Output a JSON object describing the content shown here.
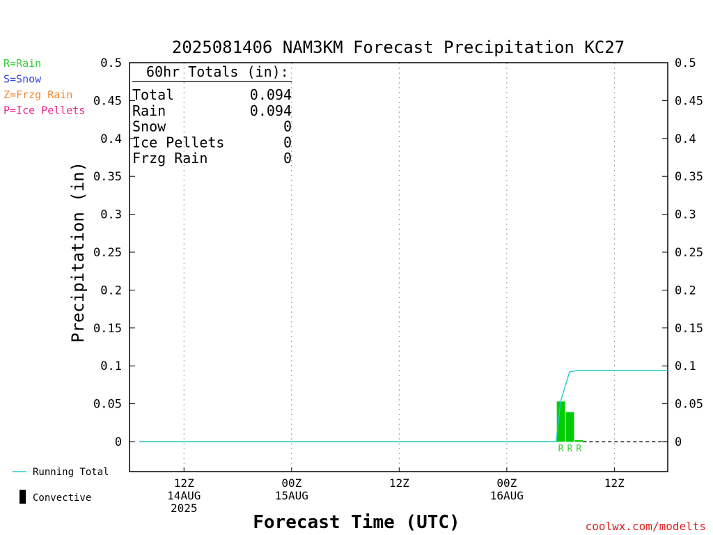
{
  "title": "2025081406 NAM3KM Forecast Precipitation KC27",
  "credit": "coolwx.com/modelts",
  "legend": {
    "ptype_keys": [
      {
        "text": "R=Rain",
        "color": "#33cc33"
      },
      {
        "text": "S=Snow",
        "color": "#3344dd"
      },
      {
        "text": "Z=Frzg Rain",
        "color": "#ee8833"
      },
      {
        "text": "P=Ice Pellets",
        "color": "#ee2288"
      }
    ],
    "running_total": "Running Total",
    "convective": "Convective"
  },
  "totals_box": {
    "header": "60hr Totals (in):",
    "rows": [
      {
        "label": "Total",
        "value": "0.094"
      },
      {
        "label": "Rain",
        "value": "0.094"
      },
      {
        "label": "Snow",
        "value": "0"
      },
      {
        "label": "Ice Pellets",
        "value": "0"
      },
      {
        "label": "Frzg Rain",
        "value": "0"
      }
    ]
  },
  "colors": {
    "rain_bar": "#00cc00",
    "running_total_line": "#22cccc",
    "convective": "#000000",
    "axis": "#000000",
    "grid": "#999999"
  },
  "chart_data": {
    "type": "bar",
    "title": "2025081406 NAM3KM Forecast Precipitation KC27",
    "xlabel": "Forecast Time (UTC)",
    "ylabel": "Precipitation (in)",
    "ylim": [
      -0.04,
      0.5
    ],
    "y_ticks": [
      "0",
      "0.05",
      "0.1",
      "0.15",
      "0.2",
      "0.25",
      "0.3",
      "0.35",
      "0.4",
      "0.45",
      "0.5"
    ],
    "grid": "vertical dotted",
    "x_range_hours": [
      6,
      66
    ],
    "x_ticks": [
      {
        "hour": 12,
        "lines": [
          "12Z",
          "14AUG",
          "2025"
        ]
      },
      {
        "hour": 24,
        "lines": [
          "00Z",
          "15AUG"
        ]
      },
      {
        "hour": 36,
        "lines": [
          "12Z"
        ]
      },
      {
        "hour": 48,
        "lines": [
          "00Z",
          "16AUG"
        ]
      },
      {
        "hour": 60,
        "lines": [
          "12Z"
        ]
      }
    ],
    "series": [
      {
        "kind": "bars",
        "hours": [
          54,
          55,
          56
        ],
        "values": [
          0.053,
          0.039,
          0.002
        ],
        "ptype": [
          "R",
          "R",
          "R"
        ]
      },
      {
        "kind": "line",
        "name": "Running Total",
        "hours": [
          7,
          53,
          54,
          55,
          56,
          66
        ],
        "values": [
          0,
          0,
          0.053,
          0.092,
          0.094,
          0.094
        ]
      }
    ]
  }
}
